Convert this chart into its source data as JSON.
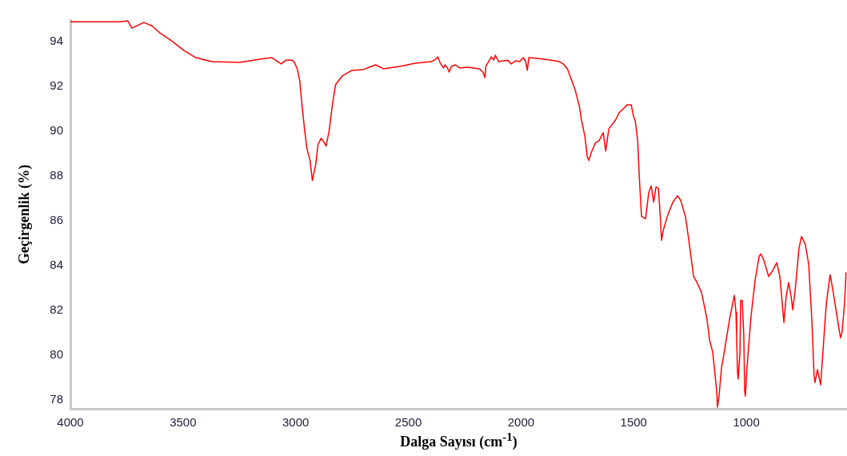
{
  "chart_data": {
    "type": "line",
    "xlabel": "Dalga Sayısı (cm$^{-1}$)",
    "ylabel": "Geçirgenlik (%)",
    "xlim": [
      4000,
      553
    ],
    "xticks": [
      4000,
      3500,
      3000,
      2500,
      2000,
      1500,
      1000
    ],
    "ylim": [
      77.6,
      94.95
    ],
    "yticks": [
      78,
      80,
      82,
      84,
      86,
      88,
      90,
      92,
      94
    ],
    "grid": false,
    "legend": false,
    "marker": "none",
    "line_style": "solid",
    "series": [
      {
        "color": "#ff0000",
        "x": [
          4000,
          3780,
          3745,
          3727,
          3674,
          3638,
          3603,
          3550,
          3496,
          3443,
          3372,
          3248,
          3142,
          3106,
          3064,
          3043,
          3018,
          3007,
          2993,
          2982,
          2972,
          2961,
          2950,
          2936,
          2926,
          2911,
          2901,
          2887,
          2879,
          2865,
          2851,
          2837,
          2823,
          2794,
          2752,
          2699,
          2663,
          2645,
          2610,
          2539,
          2468,
          2397,
          2379,
          2369,
          2358,
          2344,
          2337,
          2326,
          2319,
          2309,
          2291,
          2273,
          2238,
          2184,
          2167,
          2160,
          2156,
          2131,
          2121,
          2114,
          2099,
          2060,
          2043,
          2025,
          2007,
          1989,
          1979,
          1972,
          1965,
          1918,
          1865,
          1830,
          1812,
          1794,
          1777,
          1759,
          1741,
          1731,
          1716,
          1706,
          1699,
          1688,
          1670,
          1653,
          1635,
          1624,
          1610,
          1582,
          1564,
          1546,
          1528,
          1511,
          1500,
          1493,
          1482,
          1475,
          1465,
          1447,
          1433,
          1422,
          1411,
          1401,
          1390,
          1383,
          1376,
          1369,
          1351,
          1326,
          1305,
          1291,
          1270,
          1255,
          1234,
          1220,
          1199,
          1184,
          1174,
          1163,
          1149,
          1138,
          1131,
          1128,
          1121,
          1110,
          1092,
          1075,
          1053,
          1046,
          1043,
          1039,
          1036,
          1028,
          1025,
          1018,
          1011,
          1007,
          1004,
          997,
          979,
          961,
          943,
          936,
          922,
          901,
          883,
          865,
          851,
          837,
          833,
          823,
          812,
          801,
          794,
          784,
          766,
          755,
          738,
          723,
          709,
          699,
          695,
          684,
          670,
          660,
          645,
          635,
          628,
          617,
          603,
          589,
          582,
          575,
          564,
          557
        ],
        "values": [
          94.87,
          94.87,
          94.91,
          94.59,
          94.84,
          94.69,
          94.37,
          94.02,
          93.59,
          93.27,
          93.09,
          93.06,
          93.23,
          93.27,
          92.99,
          93.16,
          93.16,
          93.09,
          92.77,
          92.24,
          91.17,
          90.1,
          89.21,
          88.68,
          87.79,
          88.5,
          89.39,
          89.67,
          89.57,
          89.32,
          90.03,
          91.17,
          92.06,
          92.45,
          92.7,
          92.74,
          92.88,
          92.95,
          92.77,
          92.88,
          93.02,
          93.09,
          93.2,
          93.31,
          93.02,
          92.81,
          92.95,
          92.81,
          92.63,
          92.88,
          92.95,
          92.81,
          92.84,
          92.77,
          92.59,
          92.38,
          92.88,
          93.31,
          93.16,
          93.38,
          93.09,
          93.16,
          92.99,
          93.13,
          93.09,
          93.27,
          93.09,
          92.7,
          93.27,
          93.23,
          93.16,
          93.09,
          92.99,
          92.77,
          92.31,
          91.81,
          91.1,
          90.46,
          89.74,
          88.85,
          88.68,
          89.03,
          89.46,
          89.57,
          89.92,
          89.1,
          90.1,
          90.46,
          90.81,
          90.99,
          91.17,
          91.17,
          90.63,
          90.46,
          89.57,
          87.96,
          86.18,
          86.08,
          87.25,
          87.54,
          86.82,
          87.5,
          87.43,
          86.36,
          85.12,
          85.54,
          86.18,
          86.82,
          87.11,
          86.9,
          86.18,
          85.12,
          83.51,
          83.26,
          82.8,
          82.09,
          81.56,
          80.67,
          80.13,
          79.06,
          78.35,
          77.67,
          78.17,
          79.42,
          80.49,
          81.56,
          82.66,
          81.91,
          80.84,
          79.24,
          78.92,
          80.13,
          82.44,
          82.44,
          80.84,
          78.35,
          78.17,
          79.42,
          81.73,
          83.33,
          84.4,
          84.51,
          84.23,
          83.51,
          83.76,
          84.12,
          83.51,
          81.91,
          81.45,
          82.62,
          83.23,
          82.62,
          82.02,
          82.8,
          84.76,
          85.29,
          84.94,
          84.05,
          81.56,
          79.06,
          78.77,
          79.35,
          78.67,
          80.13,
          82.27,
          83.05,
          83.58,
          82.98,
          82.09,
          81.2,
          80.77,
          81.02,
          82.27,
          83.69
        ]
      }
    ]
  }
}
